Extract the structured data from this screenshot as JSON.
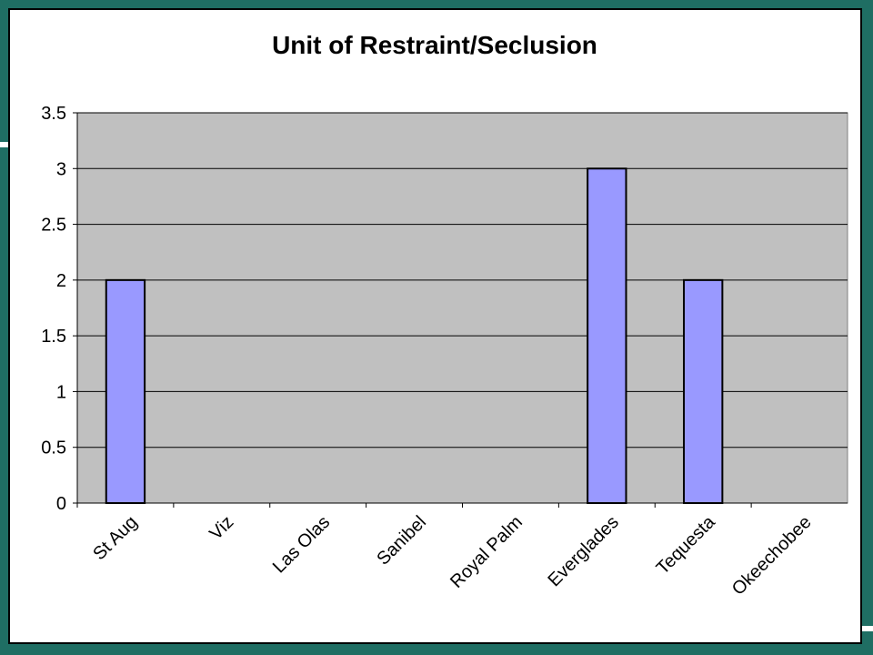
{
  "chart_data": {
    "type": "bar",
    "title": "Unit of Restraint/Seclusion",
    "xlabel": "",
    "ylabel": "",
    "categories": [
      "St Aug",
      "Viz",
      "Las Olas",
      "Sanibel",
      "Royal Palm",
      "Everglades",
      "Tequesta",
      "Okeechobee"
    ],
    "values": [
      2,
      0,
      0,
      0,
      0,
      3,
      2,
      0
    ],
    "ylim": [
      0,
      3.5
    ],
    "yticks": [
      0,
      0.5,
      1,
      1.5,
      2,
      2.5,
      3,
      3.5
    ],
    "ytick_labels": [
      "0",
      "0.5",
      "1",
      "1.5",
      "2",
      "2.5",
      "3",
      "3.5"
    ],
    "grid": true,
    "legend": "none",
    "colors": {
      "bar_fill": "#9999ff",
      "plot_background": "#c0c0c0",
      "frame_background": "#1f6e63"
    }
  }
}
